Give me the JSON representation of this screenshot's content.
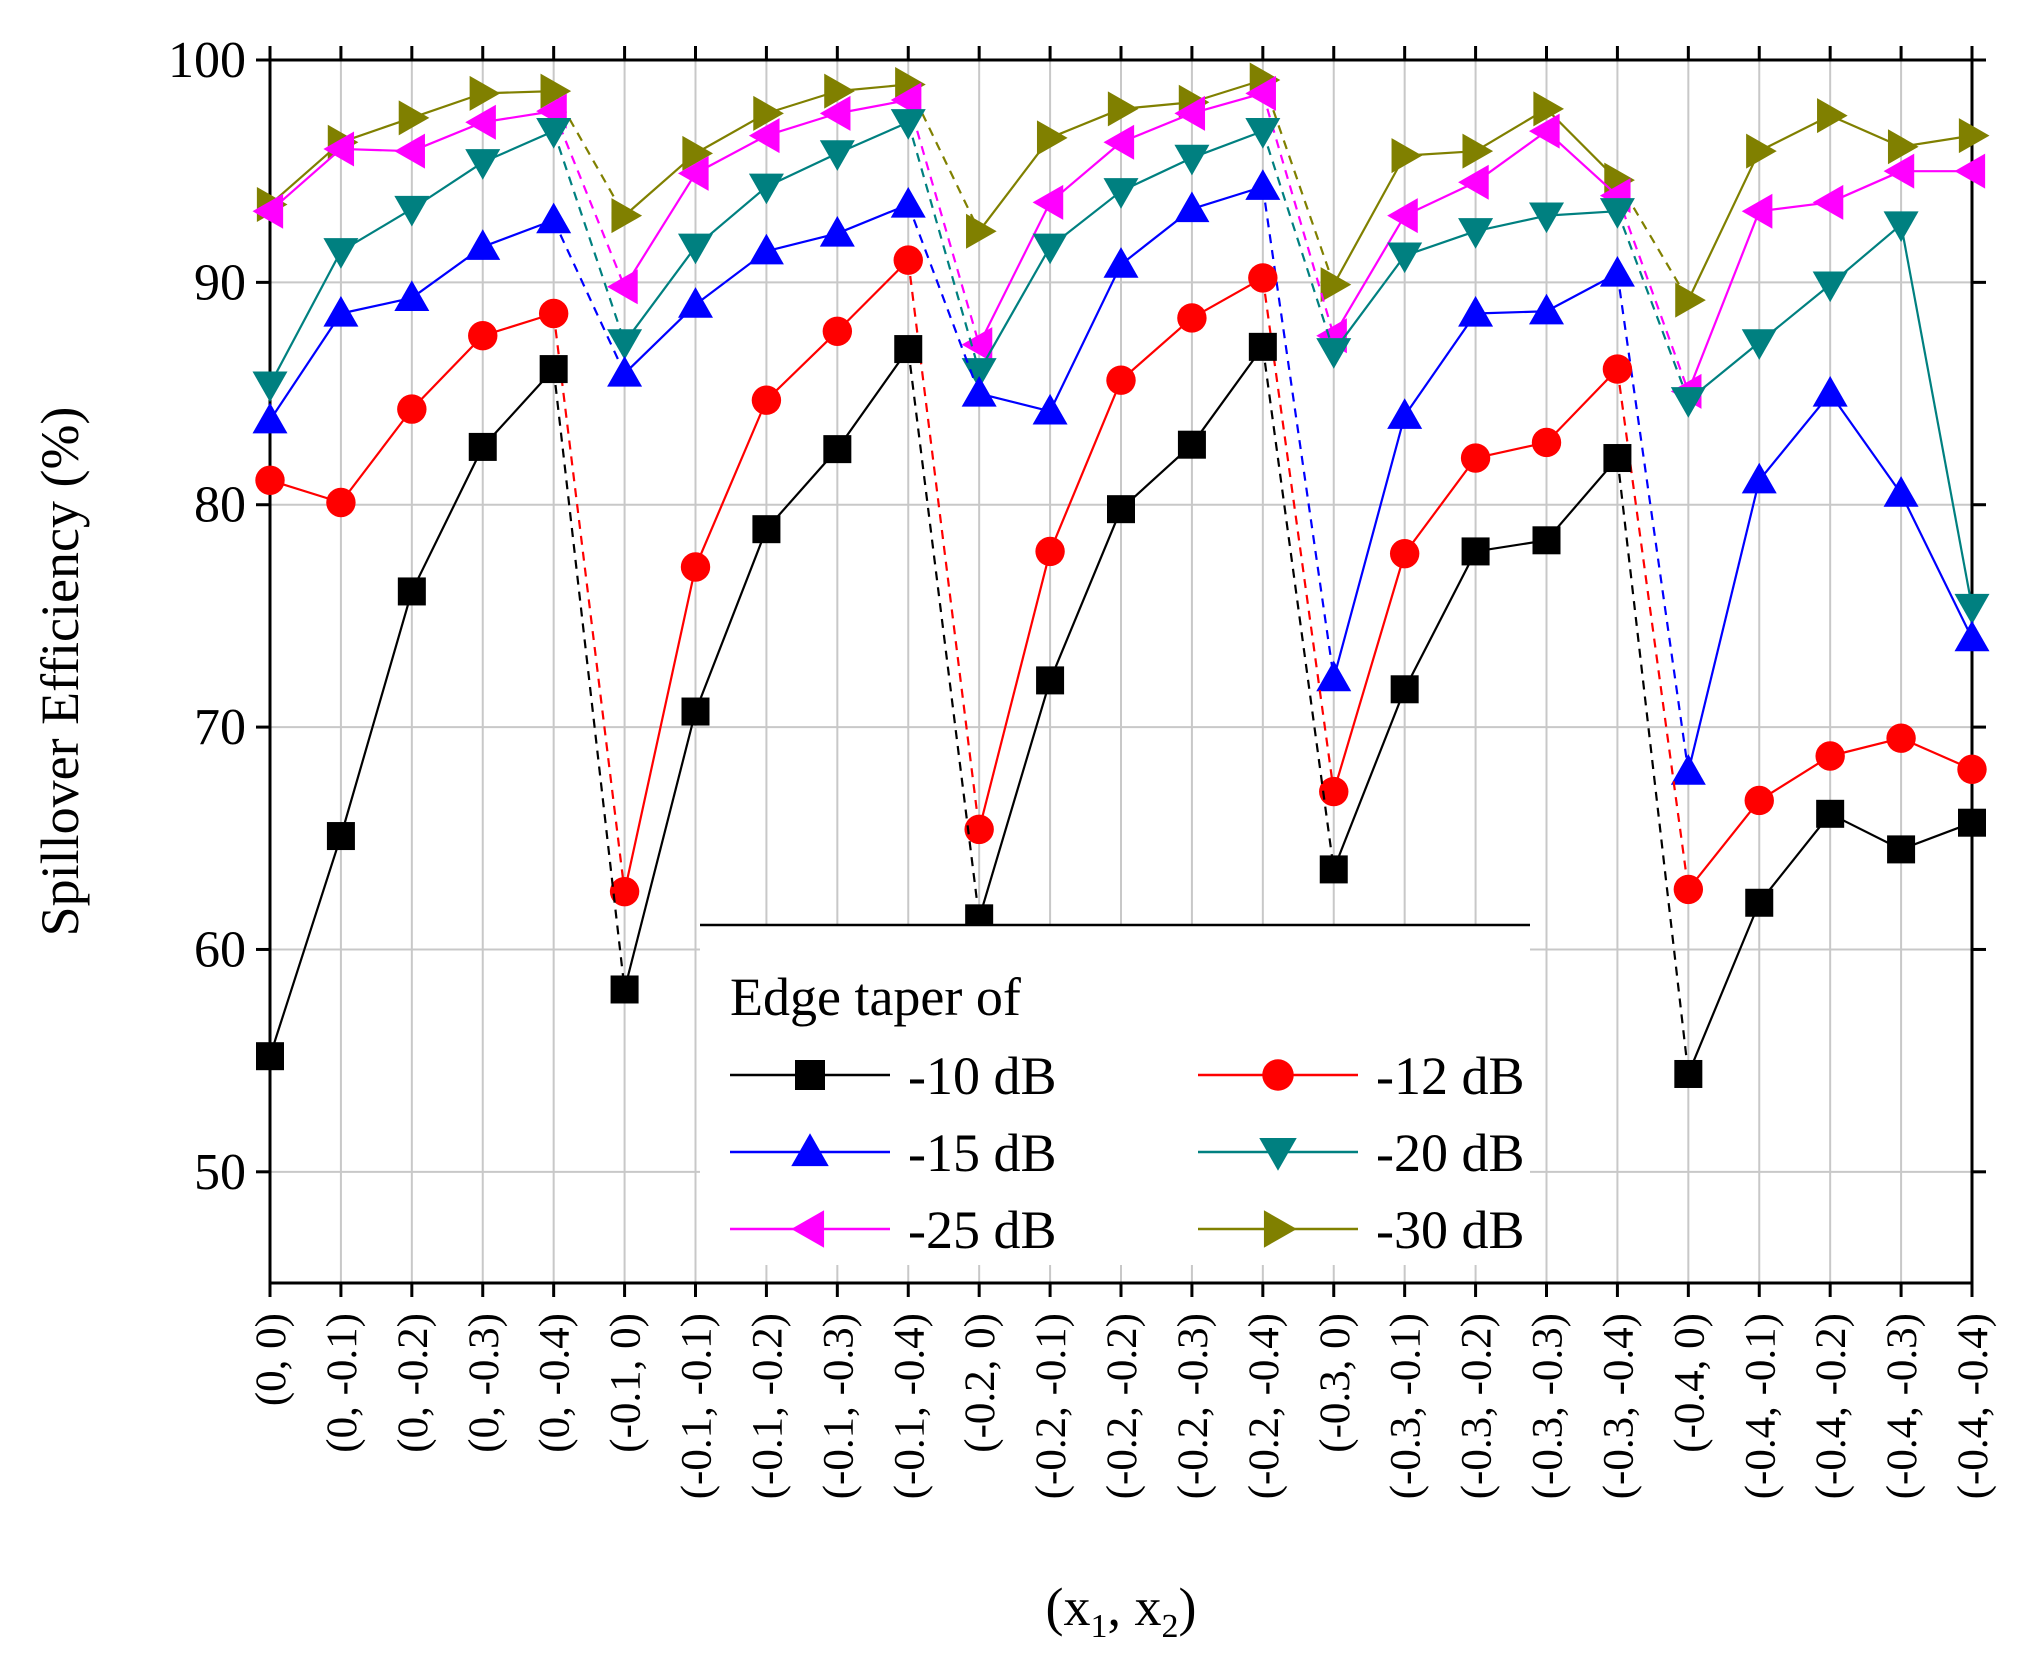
{
  "chart_data": {
    "type": "line",
    "title": "",
    "xlabel_main": "(x",
    "xlabel_sub1": "1",
    "xlabel_mid": ", x",
    "xlabel_sub2": "2",
    "xlabel_end": ")",
    "ylabel": "Spillover Efficiency (%)",
    "ylim": [
      45,
      100
    ],
    "yticks": [
      50,
      60,
      70,
      80,
      90,
      100
    ],
    "grid": true,
    "legend_title": "Edge taper of",
    "legend_position": "bottom-center",
    "categories": [
      "(0, 0)",
      "(0, -0.1)",
      "(0, -0.2)",
      "(0, -0.3)",
      "(0, -0.4)",
      "(-0.1, 0)",
      "(-0.1, -0.1)",
      "(-0.1, -0.2)",
      "(-0.1, -0.3)",
      "(-0.1, -0.4)",
      "(-0.2, 0)",
      "(-0.2, -0.1)",
      "(-0.2, -0.2)",
      "(-0.2, -0.3)",
      "(-0.2, -0.4)",
      "(-0.3, 0)",
      "(-0.3, -0.1)",
      "(-0.3, -0.2)",
      "(-0.3, -0.3)",
      "(-0.3, -0.4)",
      "(-0.4, 0)",
      "(-0.4, -0.1)",
      "(-0.4, -0.2)",
      "(-0.4, -0.3)",
      "(-0.4, -0.4)"
    ],
    "series": [
      {
        "name": "-10 dB",
        "color": "#000000",
        "marker": "square",
        "values": [
          55.2,
          65.1,
          76.1,
          82.6,
          86.1,
          58.2,
          70.7,
          78.9,
          82.5,
          87.0,
          61.4,
          72.1,
          79.8,
          82.7,
          87.1,
          63.6,
          71.7,
          77.9,
          78.4,
          82.1,
          54.4,
          62.1,
          66.1,
          64.5,
          65.7
        ]
      },
      {
        "name": "-12 dB",
        "color": "#ff0000",
        "marker": "circle",
        "values": [
          81.1,
          80.1,
          84.3,
          87.6,
          88.6,
          62.6,
          77.2,
          84.7,
          87.8,
          91.0,
          65.4,
          77.9,
          85.6,
          88.4,
          90.2,
          67.1,
          77.8,
          82.1,
          82.8,
          86.1,
          62.7,
          66.7,
          68.7,
          69.5,
          68.1
        ]
      },
      {
        "name": "-15 dB",
        "color": "#0000ff",
        "marker": "triangle-up",
        "values": [
          83.8,
          88.6,
          89.3,
          91.6,
          92.8,
          85.9,
          89.0,
          91.4,
          92.2,
          93.5,
          85.0,
          84.2,
          90.8,
          93.3,
          94.3,
          72.2,
          84.0,
          88.6,
          88.7,
          90.4,
          68.0,
          81.1,
          85.0,
          80.5,
          74.0
        ]
      },
      {
        "name": "-20 dB",
        "color": "#008080",
        "marker": "triangle-down",
        "values": [
          85.4,
          91.4,
          93.3,
          95.4,
          96.8,
          87.3,
          91.6,
          94.3,
          95.8,
          97.2,
          86.0,
          91.6,
          94.1,
          95.6,
          96.8,
          86.9,
          91.2,
          92.3,
          93.0,
          93.2,
          84.7,
          87.3,
          89.9,
          92.6,
          75.4
        ]
      },
      {
        "name": "-25 dB",
        "color": "#ff00ff",
        "marker": "triangle-left",
        "values": [
          93.2,
          96.0,
          95.9,
          97.2,
          97.7,
          89.8,
          94.9,
          96.6,
          97.6,
          98.2,
          87.2,
          93.6,
          96.3,
          97.6,
          98.5,
          87.6,
          93.0,
          94.5,
          96.8,
          93.9,
          85.1,
          93.2,
          93.6,
          95.0,
          95.0
        ]
      },
      {
        "name": "-30 dB",
        "color": "#808000",
        "marker": "triangle-right",
        "values": [
          93.5,
          96.3,
          97.4,
          98.5,
          98.6,
          93.0,
          95.8,
          97.6,
          98.6,
          98.9,
          92.3,
          96.5,
          97.8,
          98.1,
          99.1,
          89.9,
          95.7,
          95.9,
          97.8,
          94.6,
          89.2,
          95.9,
          97.5,
          96.1,
          96.6
        ]
      }
    ]
  }
}
